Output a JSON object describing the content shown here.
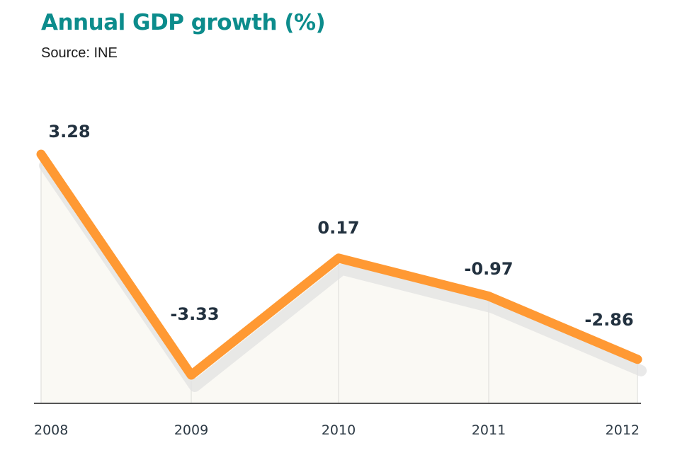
{
  "colors": {
    "title": "#0c8c8c",
    "line": "#ff9933",
    "area": "#faf9f4",
    "axis": "#555555",
    "gridline": "#e6e6e2",
    "shadow": "#e2e2e2",
    "label": "#22313f"
  },
  "chart_data": {
    "type": "line",
    "title": "Annual GDP growth (%)",
    "subtitle": "Source: INE",
    "categories": [
      "2008",
      "2009",
      "2010",
      "2011",
      "2012"
    ],
    "series": [
      {
        "values": [
          3.28,
          -3.33,
          0.17,
          -0.97,
          -2.86
        ],
        "labels": [
          "3.28",
          "-3.33",
          "0.17",
          "-0.97",
          "-2.86"
        ]
      }
    ],
    "grid": "vertical",
    "legend": "none"
  }
}
